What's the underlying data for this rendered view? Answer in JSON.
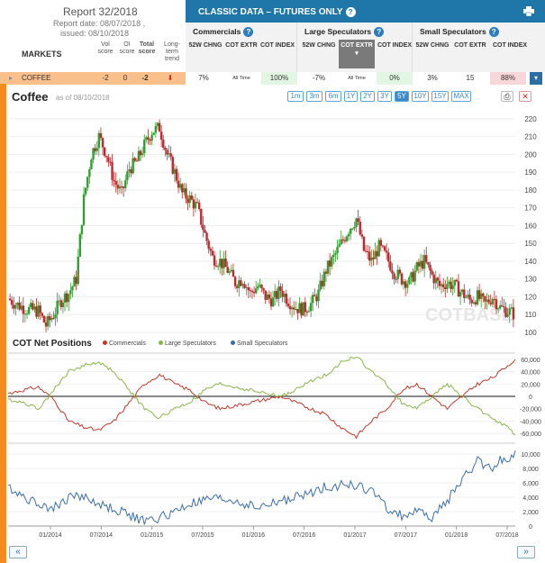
{
  "report": {
    "title": "Report 32/2018",
    "date": "Report date: 08/07/2018 ,",
    "issued": "issued: 08/10/2018"
  },
  "markets_label": "MARKETS",
  "left_columns": [
    {
      "label": "Vol score"
    },
    {
      "label": "OI score"
    },
    {
      "label": "Total score"
    },
    {
      "label": "Long-term trend"
    }
  ],
  "classic_title": "CLASSIC DATA – FUTURES ONLY",
  "groups": [
    {
      "title": "Commercials",
      "subs": [
        "52W CHNG",
        "COT EXTR",
        "COT INDEX"
      ]
    },
    {
      "title": "Large Speculators",
      "subs": [
        "52W CHNG",
        "COT EXTR",
        "COT INDEX"
      ]
    },
    {
      "title": "Small Speculators",
      "subs": [
        "52W CHNG",
        "COT EXTR",
        "COT INDEX"
      ]
    }
  ],
  "coffee_row": {
    "name": "COFFEE",
    "vol": "-2",
    "oi": "0",
    "total": "-2",
    "cells": [
      "7%",
      "All Time",
      "100%",
      "-7%",
      "All Time",
      "0%",
      "3%",
      "15",
      "88%"
    ]
  },
  "chart_title": "Coffee",
  "as_of": "as of 08/10/2018",
  "ranges": [
    "1m",
    "3m",
    "6m",
    "1Y",
    "2Y",
    "3Y",
    "5Y",
    "10Y",
    "15Y",
    "MAX"
  ],
  "selected_range": "5Y",
  "cot_title": "COT Net Positions",
  "legend": [
    "Commercials",
    "Large Speculators",
    "Small Speculators"
  ],
  "watermark": "COTBASE",
  "colors": {
    "commercials": "#c0392b",
    "large": "#8ab54a",
    "small": "#3b6ea8",
    "accent": "#1f76a8",
    "orange": "#f58a1f"
  },
  "chart_data": [
    {
      "type": "candlestick",
      "title": "Coffee",
      "yticks": [
        100,
        110,
        120,
        130,
        140,
        150,
        160,
        170,
        180,
        190,
        200,
        210,
        220
      ],
      "ylim": [
        100,
        225
      ],
      "xticks": [
        "01/2014",
        "07/2014",
        "01/2015",
        "07/2015",
        "01/2016",
        "07/2016",
        "01/2017",
        "07/2017",
        "01/2018",
        "07/2018"
      ],
      "price_path": [
        [
          0,
          119
        ],
        [
          2,
          116
        ],
        [
          5,
          113
        ],
        [
          8,
          112
        ],
        [
          10,
          104
        ],
        [
          12,
          110
        ],
        [
          14,
          118
        ],
        [
          16,
          122
        ],
        [
          18,
          130
        ],
        [
          20,
          175
        ],
        [
          22,
          200
        ],
        [
          24,
          210
        ],
        [
          26,
          200
        ],
        [
          28,
          185
        ],
        [
          30,
          178
        ],
        [
          32,
          192
        ],
        [
          34,
          196
        ],
        [
          36,
          205
        ],
        [
          38,
          213
        ],
        [
          40,
          215
        ],
        [
          42,
          200
        ],
        [
          44,
          190
        ],
        [
          46,
          178
        ],
        [
          48,
          175
        ],
        [
          50,
          170
        ],
        [
          52,
          155
        ],
        [
          54,
          142
        ],
        [
          56,
          140
        ],
        [
          58,
          135
        ],
        [
          60,
          128
        ],
        [
          62,
          130
        ],
        [
          64,
          122
        ],
        [
          66,
          126
        ],
        [
          68,
          120
        ],
        [
          70,
          118
        ],
        [
          72,
          124
        ],
        [
          74,
          118
        ],
        [
          76,
          114
        ],
        [
          78,
          113
        ],
        [
          80,
          116
        ],
        [
          82,
          122
        ],
        [
          84,
          135
        ],
        [
          86,
          142
        ],
        [
          88,
          150
        ],
        [
          90,
          158
        ],
        [
          92,
          164
        ],
        [
          94,
          146
        ],
        [
          96,
          140
        ],
        [
          98,
          148
        ],
        [
          100,
          142
        ],
        [
          102,
          134
        ],
        [
          104,
          130
        ],
        [
          106,
          128
        ],
        [
          108,
          136
        ],
        [
          110,
          140
        ],
        [
          112,
          132
        ],
        [
          114,
          126
        ],
        [
          116,
          128
        ],
        [
          118,
          126
        ],
        [
          120,
          122
        ],
        [
          122,
          118
        ],
        [
          124,
          120
        ],
        [
          126,
          116
        ],
        [
          128,
          120
        ],
        [
          130,
          114
        ],
        [
          132,
          112
        ],
        [
          134,
          110
        ]
      ]
    },
    {
      "type": "line",
      "title": "COT Net Positions",
      "series": [
        {
          "name": "Commercials"
        },
        {
          "name": "Large Speculators"
        }
      ],
      "yticks": [
        -60000,
        -40000,
        -20000,
        0,
        20000,
        40000,
        60000
      ],
      "ylim": [
        -70000,
        70000
      ],
      "commercials": [
        [
          0,
          5000
        ],
        [
          4,
          10000
        ],
        [
          8,
          15000
        ],
        [
          12,
          -5000
        ],
        [
          16,
          -40000
        ],
        [
          20,
          -50000
        ],
        [
          24,
          -55000
        ],
        [
          28,
          -40000
        ],
        [
          32,
          -10000
        ],
        [
          36,
          20000
        ],
        [
          40,
          35000
        ],
        [
          44,
          20000
        ],
        [
          48,
          10000
        ],
        [
          52,
          -10000
        ],
        [
          56,
          -20000
        ],
        [
          60,
          -15000
        ],
        [
          64,
          -10000
        ],
        [
          68,
          -5000
        ],
        [
          72,
          0
        ],
        [
          76,
          -10000
        ],
        [
          80,
          -20000
        ],
        [
          84,
          -30000
        ],
        [
          88,
          -50000
        ],
        [
          92,
          -65000
        ],
        [
          96,
          -40000
        ],
        [
          100,
          -20000
        ],
        [
          104,
          10000
        ],
        [
          108,
          20000
        ],
        [
          112,
          0
        ],
        [
          116,
          -20000
        ],
        [
          120,
          0
        ],
        [
          124,
          20000
        ],
        [
          128,
          30000
        ],
        [
          132,
          50000
        ],
        [
          134,
          60000
        ]
      ],
      "large": [
        [
          0,
          -5000
        ],
        [
          4,
          -10000
        ],
        [
          8,
          -20000
        ],
        [
          12,
          10000
        ],
        [
          16,
          40000
        ],
        [
          20,
          50000
        ],
        [
          24,
          55000
        ],
        [
          28,
          40000
        ],
        [
          32,
          10000
        ],
        [
          36,
          -20000
        ],
        [
          40,
          -35000
        ],
        [
          44,
          -20000
        ],
        [
          48,
          -10000
        ],
        [
          52,
          10000
        ],
        [
          56,
          20000
        ],
        [
          60,
          15000
        ],
        [
          64,
          10000
        ],
        [
          68,
          5000
        ],
        [
          72,
          0
        ],
        [
          76,
          10000
        ],
        [
          80,
          25000
        ],
        [
          84,
          35000
        ],
        [
          88,
          55000
        ],
        [
          92,
          65000
        ],
        [
          96,
          40000
        ],
        [
          100,
          20000
        ],
        [
          104,
          -10000
        ],
        [
          108,
          -20000
        ],
        [
          112,
          0
        ],
        [
          116,
          20000
        ],
        [
          120,
          0
        ],
        [
          124,
          -20000
        ],
        [
          128,
          -35000
        ],
        [
          132,
          -50000
        ],
        [
          134,
          -65000
        ]
      ]
    },
    {
      "type": "line",
      "series": [
        {
          "name": "Small Speculators"
        }
      ],
      "yticks": [
        0,
        2000,
        4000,
        6000,
        8000,
        10000
      ],
      "ylim": [
        0,
        11000
      ],
      "small": [
        [
          0,
          5500
        ],
        [
          6,
          3500
        ],
        [
          12,
          2500
        ],
        [
          18,
          4500
        ],
        [
          24,
          3000
        ],
        [
          30,
          2000
        ],
        [
          36,
          600
        ],
        [
          42,
          1500
        ],
        [
          48,
          3000
        ],
        [
          54,
          3800
        ],
        [
          60,
          3500
        ],
        [
          66,
          2500
        ],
        [
          72,
          3500
        ],
        [
          78,
          4200
        ],
        [
          84,
          5500
        ],
        [
          90,
          5800
        ],
        [
          96,
          5000
        ],
        [
          100,
          2500
        ],
        [
          104,
          1500
        ],
        [
          108,
          2000
        ],
        [
          112,
          1200
        ],
        [
          116,
          3500
        ],
        [
          120,
          6500
        ],
        [
          124,
          9000
        ],
        [
          128,
          8000
        ],
        [
          130,
          9500
        ],
        [
          132,
          8500
        ],
        [
          134,
          9800
        ]
      ]
    }
  ]
}
